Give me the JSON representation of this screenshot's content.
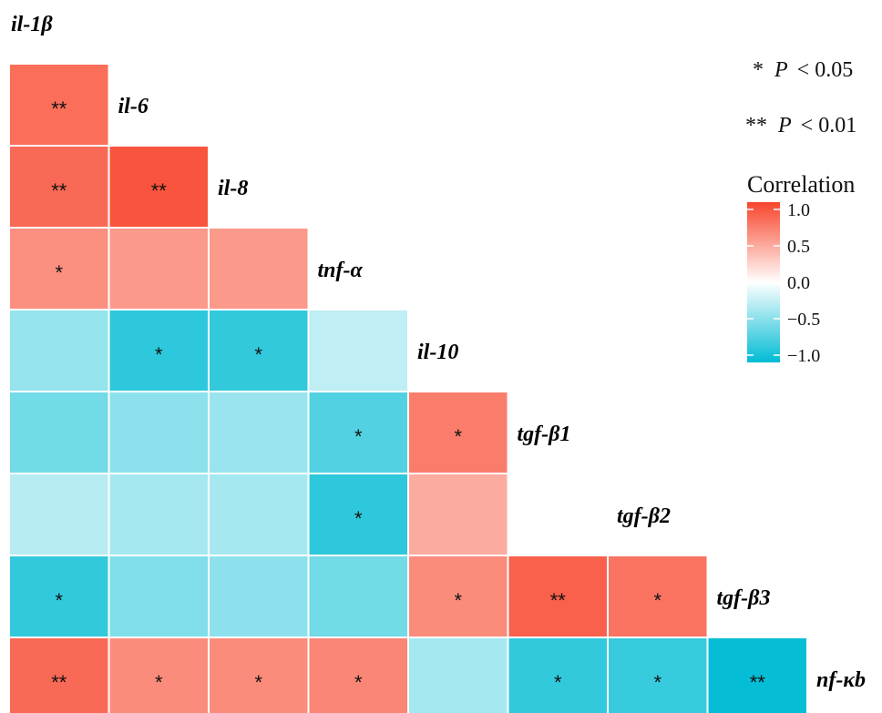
{
  "chart_data": {
    "type": "heatmap",
    "variables": [
      "il-1β",
      "il-6",
      "il-8",
      "tnf-α",
      "il-10",
      "tgf-β1",
      "tgf-β2",
      "tgf-β3",
      "nf-κb"
    ],
    "cells": [
      {
        "row": "il-6",
        "col": "il-1β",
        "value": 0.78,
        "sig": "**"
      },
      {
        "row": "il-8",
        "col": "il-1β",
        "value": 0.8,
        "sig": "**"
      },
      {
        "row": "il-8",
        "col": "il-6",
        "value": 0.92,
        "sig": "**"
      },
      {
        "row": "tnf-α",
        "col": "il-1β",
        "value": 0.6,
        "sig": "*"
      },
      {
        "row": "tnf-α",
        "col": "il-6",
        "value": 0.55,
        "sig": ""
      },
      {
        "row": "tnf-α",
        "col": "il-8",
        "value": 0.55,
        "sig": ""
      },
      {
        "row": "il-10",
        "col": "il-1β",
        "value": -0.42,
        "sig": ""
      },
      {
        "row": "il-10",
        "col": "il-6",
        "value": -0.82,
        "sig": "*"
      },
      {
        "row": "il-10",
        "col": "il-8",
        "value": -0.8,
        "sig": "*"
      },
      {
        "row": "il-10",
        "col": "tnf-α",
        "value": -0.25,
        "sig": ""
      },
      {
        "row": "tgf-β1",
        "col": "il-1β",
        "value": -0.55,
        "sig": ""
      },
      {
        "row": "tgf-β1",
        "col": "il-6",
        "value": -0.45,
        "sig": ""
      },
      {
        "row": "tgf-β1",
        "col": "il-8",
        "value": -0.4,
        "sig": ""
      },
      {
        "row": "tgf-β1",
        "col": "tnf-α",
        "value": -0.68,
        "sig": "*"
      },
      {
        "row": "tgf-β1",
        "col": "il-10",
        "value": 0.7,
        "sig": "*"
      },
      {
        "row": "tgf-β2",
        "col": "il-1β",
        "value": -0.28,
        "sig": ""
      },
      {
        "row": "tgf-β2",
        "col": "il-6",
        "value": -0.35,
        "sig": ""
      },
      {
        "row": "tgf-β2",
        "col": "il-8",
        "value": -0.35,
        "sig": ""
      },
      {
        "row": "tgf-β2",
        "col": "tnf-α",
        "value": -0.82,
        "sig": "*"
      },
      {
        "row": "tgf-β2",
        "col": "il-10",
        "value": 0.45,
        "sig": ""
      },
      {
        "row": "tgf-β3",
        "col": "il-1β",
        "value": -0.8,
        "sig": "*"
      },
      {
        "row": "tgf-β3",
        "col": "il-6",
        "value": -0.5,
        "sig": ""
      },
      {
        "row": "tgf-β3",
        "col": "il-8",
        "value": -0.45,
        "sig": ""
      },
      {
        "row": "tgf-β3",
        "col": "tnf-α",
        "value": -0.55,
        "sig": ""
      },
      {
        "row": "tgf-β3",
        "col": "il-10",
        "value": 0.62,
        "sig": "*"
      },
      {
        "row": "tgf-β3",
        "col": "tgf-β1",
        "value": 0.85,
        "sig": "**"
      },
      {
        "row": "tgf-β3",
        "col": "tgf-β2",
        "value": 0.75,
        "sig": "*"
      },
      {
        "row": "nf-κb",
        "col": "il-1β",
        "value": 0.8,
        "sig": "**"
      },
      {
        "row": "nf-κb",
        "col": "il-6",
        "value": 0.62,
        "sig": "*"
      },
      {
        "row": "nf-κb",
        "col": "il-8",
        "value": 0.62,
        "sig": "*"
      },
      {
        "row": "nf-κb",
        "col": "tnf-α",
        "value": 0.65,
        "sig": "*"
      },
      {
        "row": "nf-κb",
        "col": "il-10",
        "value": -0.35,
        "sig": ""
      },
      {
        "row": "nf-κb",
        "col": "tgf-β1",
        "value": -0.8,
        "sig": "*"
      },
      {
        "row": "nf-κb",
        "col": "tgf-β2",
        "value": -0.78,
        "sig": "*"
      },
      {
        "row": "nf-κb",
        "col": "tgf-β3",
        "value": -0.98,
        "sig": "**"
      }
    ],
    "legend": {
      "title": "Correlation",
      "ticks": [
        "1.0",
        "0.5",
        "0.0",
        "−0.5",
        "−1.0"
      ],
      "range": [
        -1,
        1
      ],
      "colors": {
        "high": "#f8452c",
        "mid": "#ffffff",
        "low": "#00bcd4"
      }
    },
    "annotations": {
      "p05": {
        "stars": "*",
        "label": "P",
        "text": "< 0.05"
      },
      "p01": {
        "stars": "**",
        "label": "P",
        "text": "< 0.01"
      }
    }
  }
}
